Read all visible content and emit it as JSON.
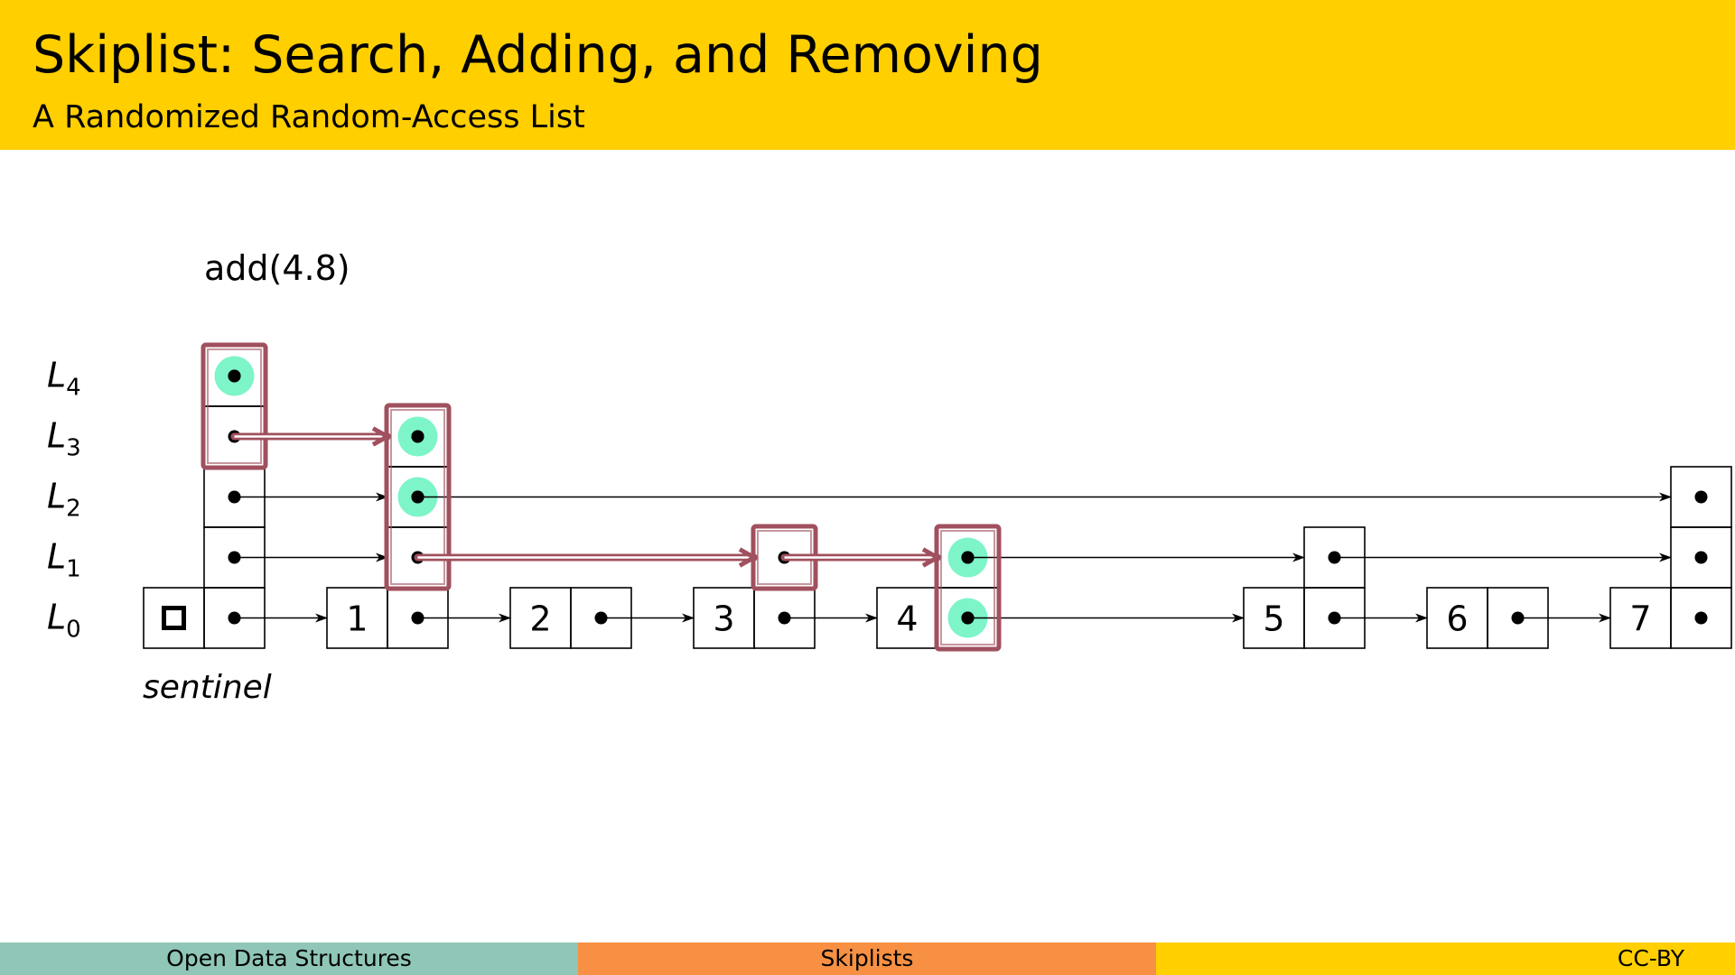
{
  "slide": {
    "title": "Skiplist: Search, Adding, and Removing",
    "subtitle": "A Randomized Random-Access List"
  },
  "diagram": {
    "operation": "add(4.8)",
    "sentinel_label": "sentinel",
    "level_labels": [
      {
        "base": "L",
        "sub": "4"
      },
      {
        "base": "L",
        "sub": "3"
      },
      {
        "base": "L",
        "sub": "2"
      },
      {
        "base": "L",
        "sub": "1"
      },
      {
        "base": "L",
        "sub": "0"
      }
    ],
    "nodes": [
      {
        "value": "",
        "height": 5
      },
      {
        "value": "1",
        "height": 4
      },
      {
        "value": "2",
        "height": 1
      },
      {
        "value": "3",
        "height": 2
      },
      {
        "value": "4",
        "height": 2
      },
      {
        "value": "5",
        "height": 2
      },
      {
        "value": "6",
        "height": 1
      },
      {
        "value": "7",
        "height": 3
      }
    ],
    "search_path": [
      {
        "node": 0,
        "level": 4
      },
      {
        "node": 0,
        "level": 3
      },
      {
        "node": 1,
        "level": 3
      },
      {
        "node": 1,
        "level": 2
      },
      {
        "node": 1,
        "level": 1
      },
      {
        "node": 3,
        "level": 1
      },
      {
        "node": 4,
        "level": 1
      },
      {
        "node": 4,
        "level": 0
      }
    ],
    "highlighted_pointers": [
      {
        "node": 0,
        "level": 4
      },
      {
        "node": 1,
        "level": 3
      },
      {
        "node": 1,
        "level": 2
      },
      {
        "node": 4,
        "level": 1
      },
      {
        "node": 4,
        "level": 0
      }
    ],
    "colors": {
      "path": "#A0505E",
      "highlight": "#7DF5C8",
      "ink": "#000000"
    }
  },
  "footer": {
    "left": "Open Data Structures",
    "middle": "Skiplists",
    "right": "CC-BY",
    "left_color": "#8FC6B7",
    "middle_color": "#F79042",
    "right_color": "#FFCF00"
  }
}
